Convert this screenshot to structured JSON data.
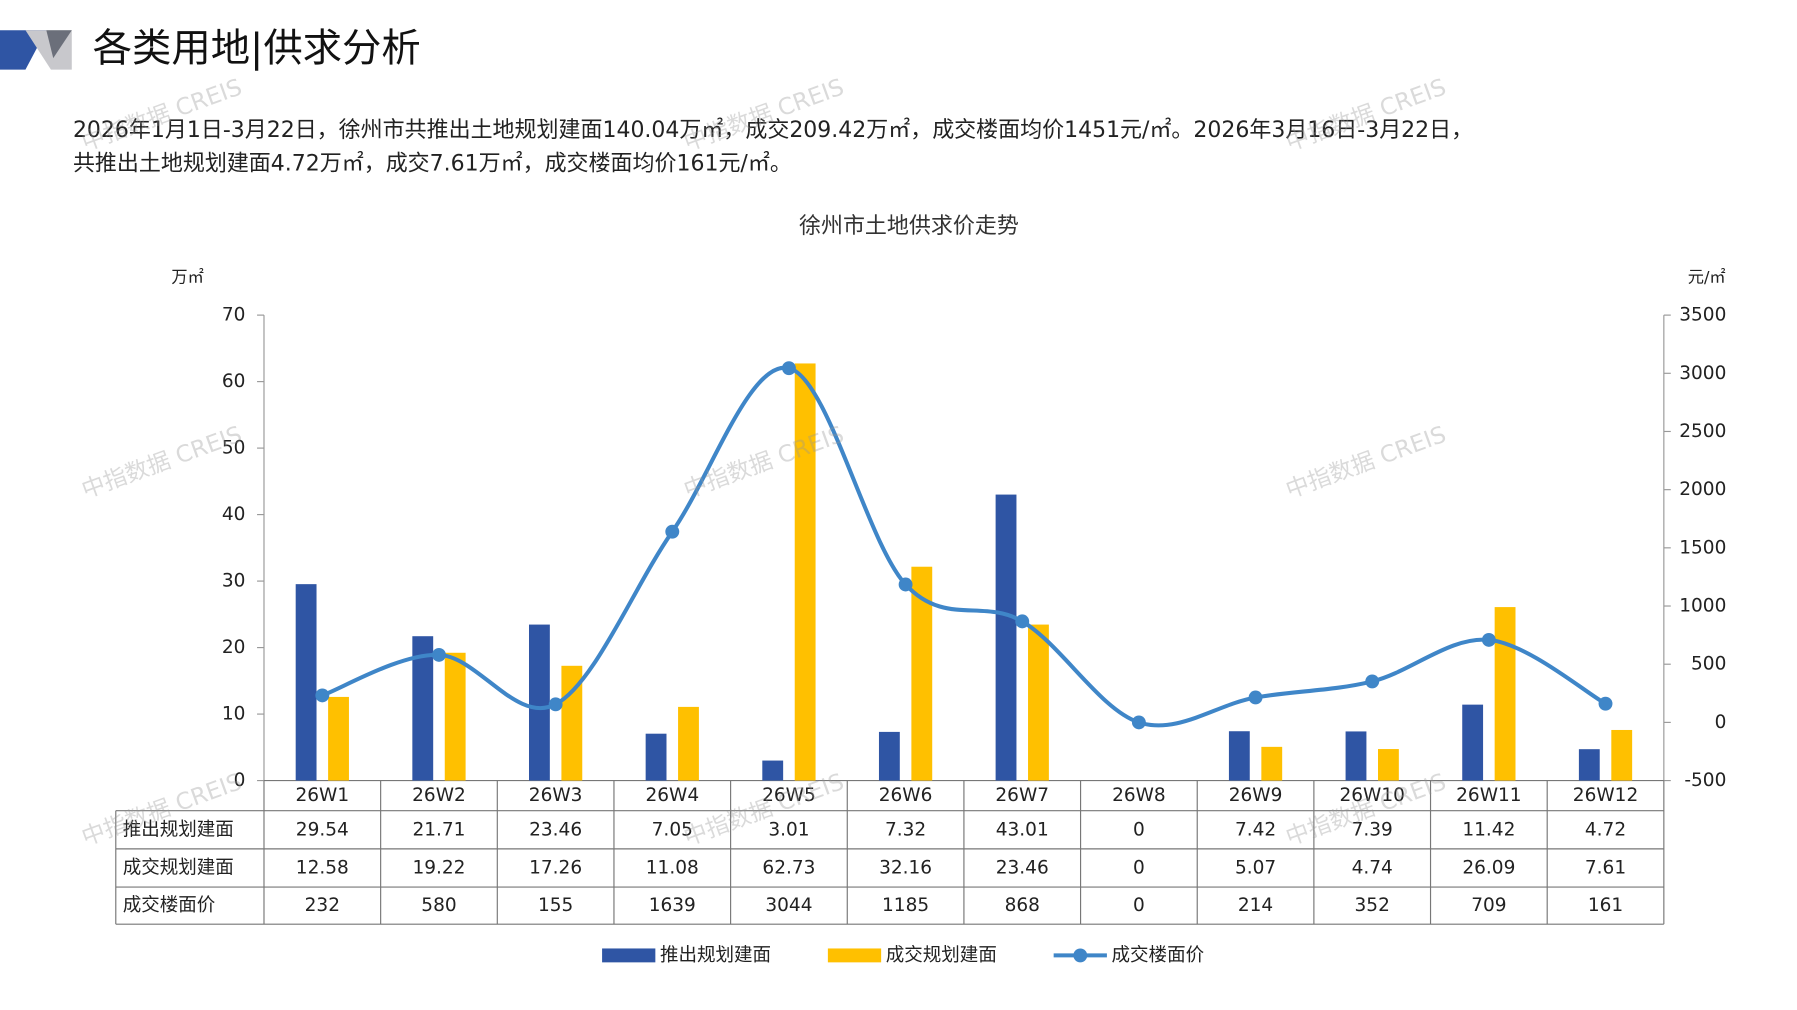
{
  "header": {
    "title": "各类用地|供求分析",
    "paragraph": [
      "2026年1月1日-3月22日，徐州市共推出土地规划建面140.04万㎡，成交209.42万㎡，成交楼面均价1451元/㎡。2026年3月16日-3月22日，",
      "共推出土地规划建面4.72万㎡，成交7.61万㎡，成交楼面均价161元/㎡。"
    ]
  },
  "watermark": "中指数据 CREIS",
  "chart_data": {
    "type": "bar",
    "title": "徐州市土地供求价走势",
    "y_label": "万㎡",
    "y2_label": "元/㎡",
    "categories": [
      "26W1",
      "26W2",
      "26W3",
      "26W4",
      "26W5",
      "26W6",
      "26W7",
      "26W8",
      "26W9",
      "26W10",
      "26W11",
      "26W12"
    ],
    "series": [
      {
        "name": "推出规划建面",
        "type": "bar",
        "color": "#2f55a4",
        "values": [
          29.54,
          21.71,
          23.46,
          7.05,
          3.01,
          7.32,
          43.01,
          0,
          7.42,
          7.39,
          11.42,
          4.72
        ]
      },
      {
        "name": "成交规划建面",
        "type": "bar",
        "color": "#ffc000",
        "values": [
          12.58,
          19.22,
          17.26,
          11.08,
          62.73,
          32.16,
          23.46,
          0,
          5.07,
          4.74,
          26.09,
          7.61
        ]
      },
      {
        "name": "成交楼面价",
        "type": "line",
        "axis": "y2",
        "color": "#3f86c8",
        "values": [
          232,
          580,
          155,
          1639,
          3044,
          1185,
          868,
          0,
          214,
          352,
          709,
          161
        ]
      }
    ],
    "ylim": [
      0,
      70
    ],
    "yticks": [
      0,
      10,
      20,
      30,
      40,
      50,
      60,
      70
    ],
    "y2lim": [
      -500,
      3500
    ],
    "y2ticks": [
      -500,
      0,
      500,
      1000,
      1500,
      2000,
      2500,
      3000,
      3500
    ],
    "grid": false,
    "legend": "bottom",
    "data_table": true
  }
}
